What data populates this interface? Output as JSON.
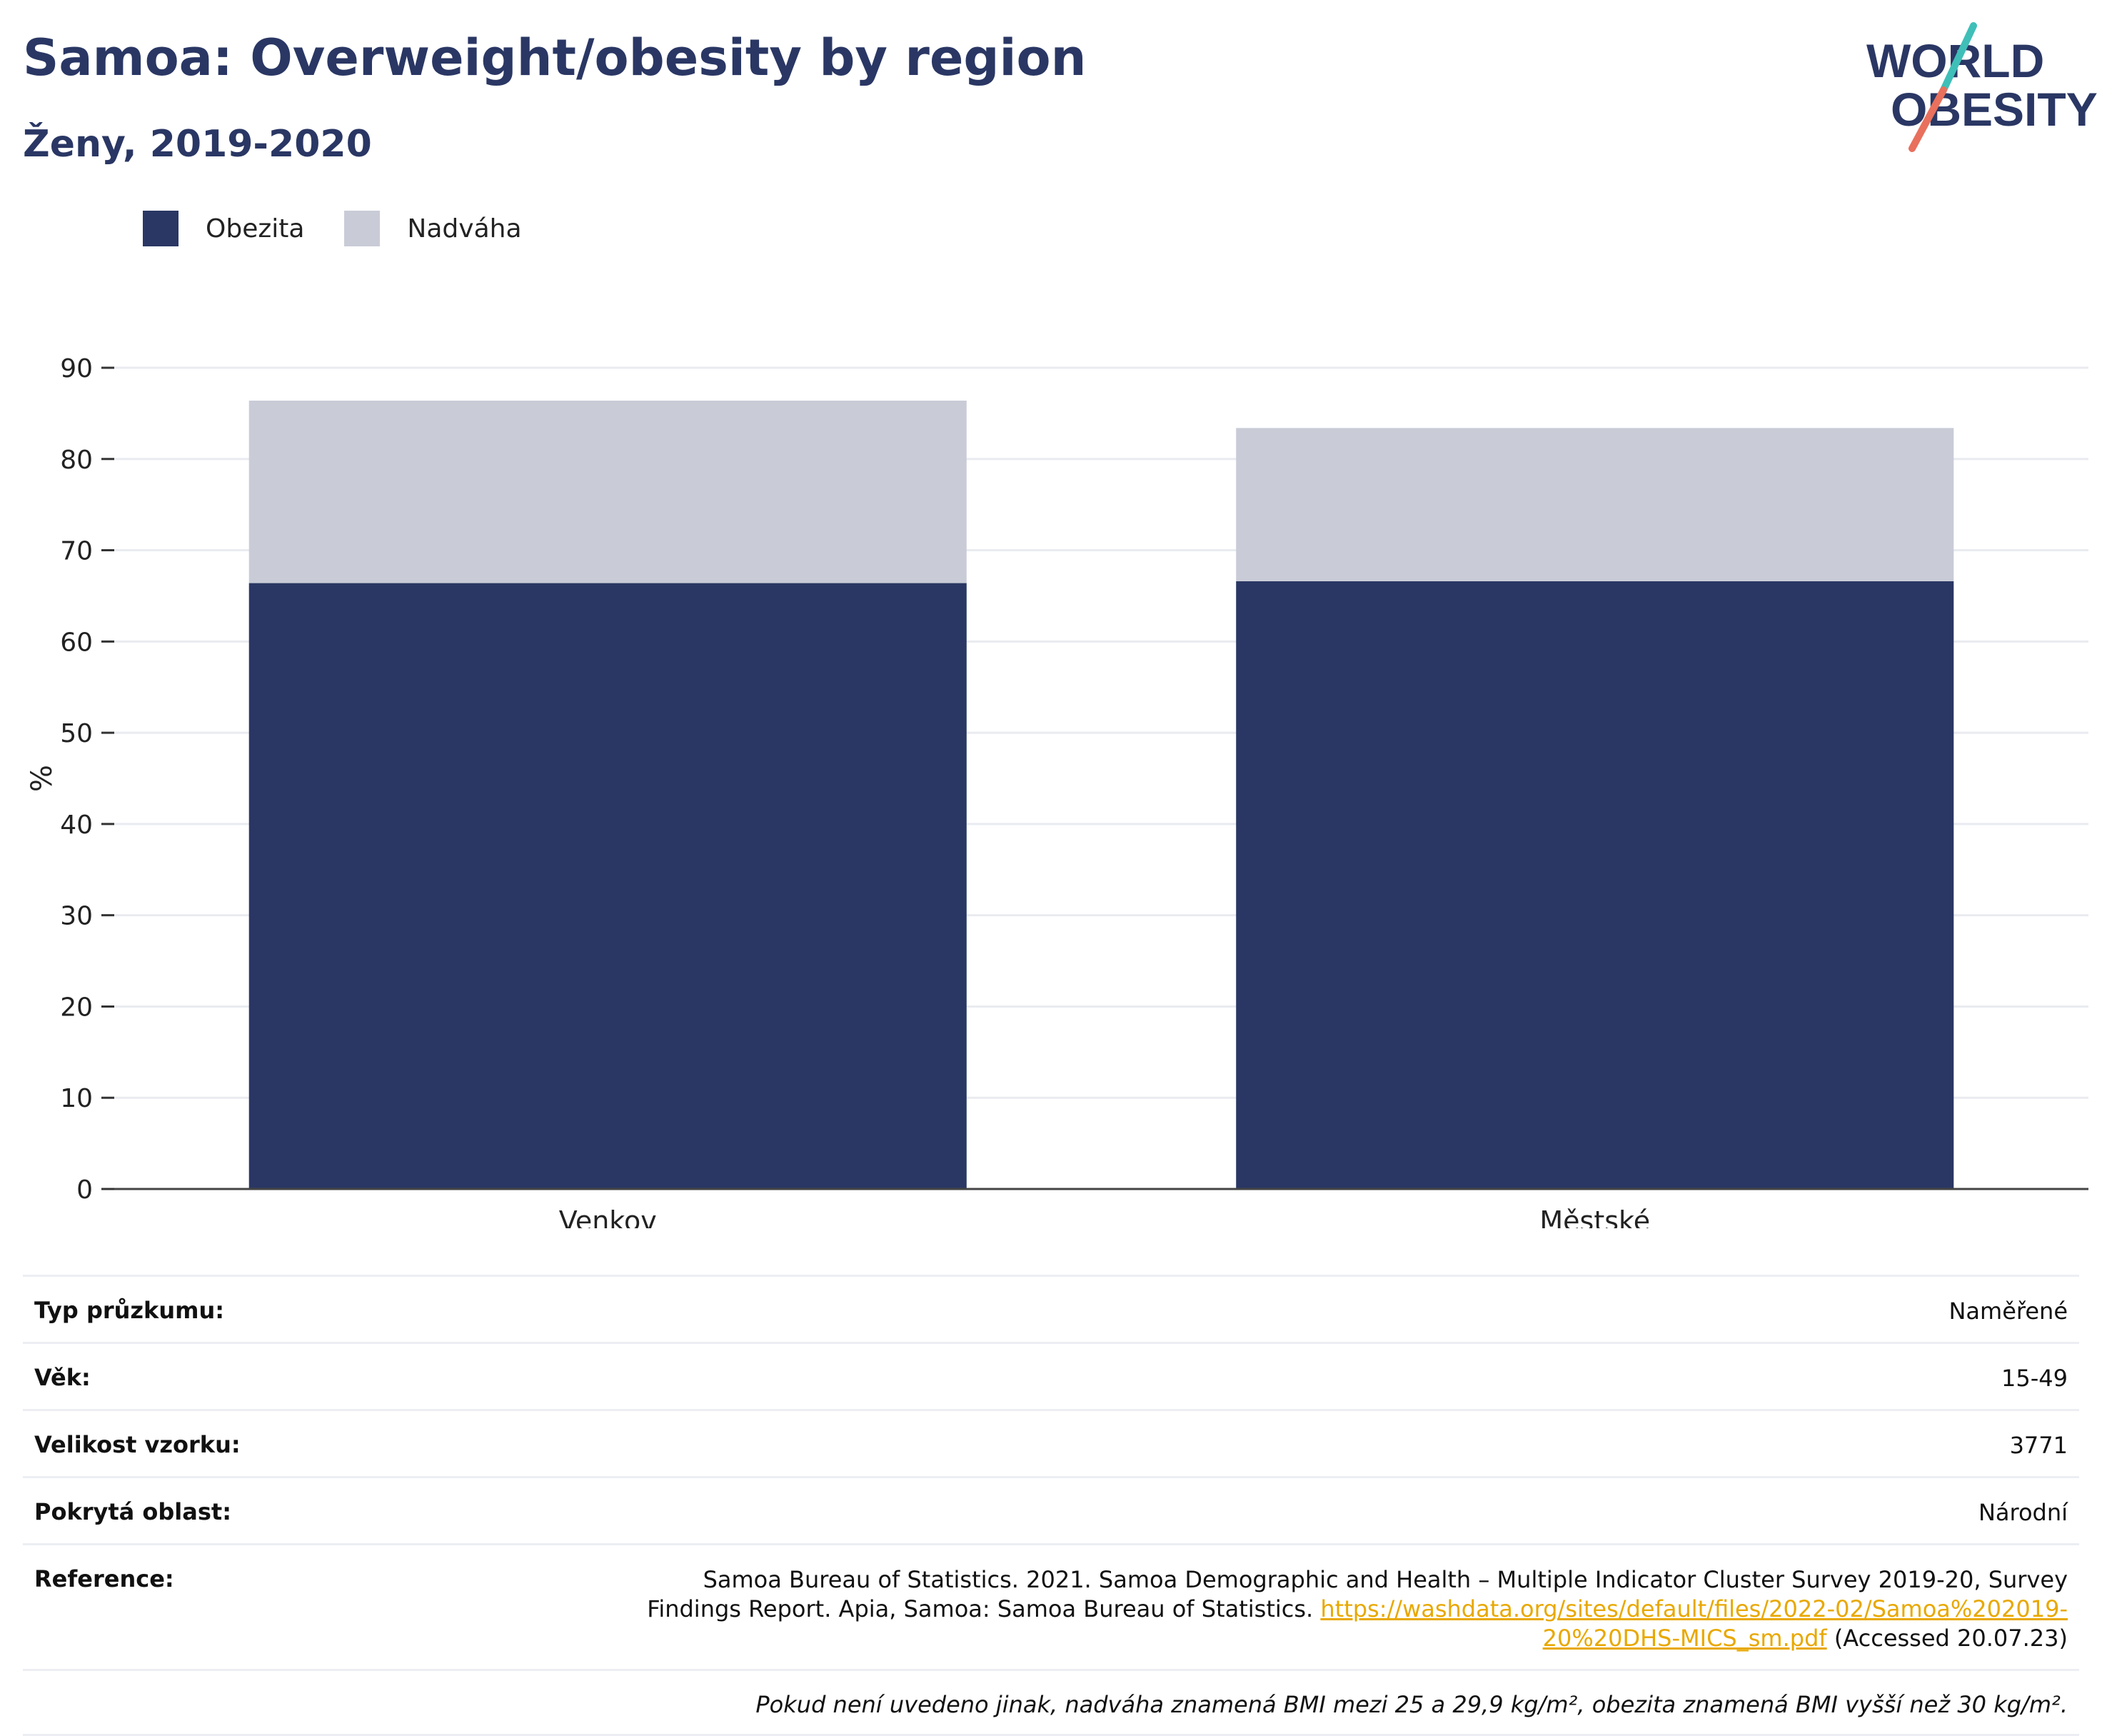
{
  "title": "Samoa: Overweight/obesity by region",
  "subtitle": "Ženy, 2019-2020",
  "logo": {
    "line1": "WORLD",
    "line2": "OBESITY"
  },
  "chart_data": {
    "type": "bar",
    "stacked": true,
    "categories": [
      "Venkov",
      "Městské"
    ],
    "series": [
      {
        "name": "Obezita",
        "values": [
          66.4,
          66.6
        ],
        "color": "#2a3764"
      },
      {
        "name": "Nadváha",
        "values": [
          20.0,
          16.8
        ],
        "color": "#c9ccd7"
      }
    ],
    "ylabel": "%",
    "ylim": [
      0,
      90
    ],
    "yticks": [
      0,
      10,
      20,
      30,
      40,
      50,
      60,
      70,
      80,
      90
    ],
    "grid": true,
    "legend_position": "top-left"
  },
  "info": {
    "survey_type": {
      "label": "Typ průzkumu:",
      "value": "Naměřené"
    },
    "age": {
      "label": "Věk:",
      "value": "15-49"
    },
    "sample_size": {
      "label": "Velikost vzorku:",
      "value": "3771"
    },
    "area": {
      "label": "Pokrytá oblast:",
      "value": "Národní"
    },
    "reference": {
      "label": "Reference:",
      "text": "Samoa Bureau of Statistics. 2021. Samoa Demographic and Health – Multiple Indicator Cluster Survey 2019-20, Survey Findings Report. Apia, Samoa: Samoa Bureau of Statistics.",
      "link": "https://washdata.org/sites/default/files/2022-02/Samoa%202019-20%20DHS-MICS_sm.pdf",
      "accessed": "(Accessed 20.07.23)"
    },
    "note": "Pokud není uvedeno jinak, nadváha znamená BMI mezi 25 a 29,9 kg/m², obezita znamená BMI vyšší než 30 kg/m²."
  }
}
